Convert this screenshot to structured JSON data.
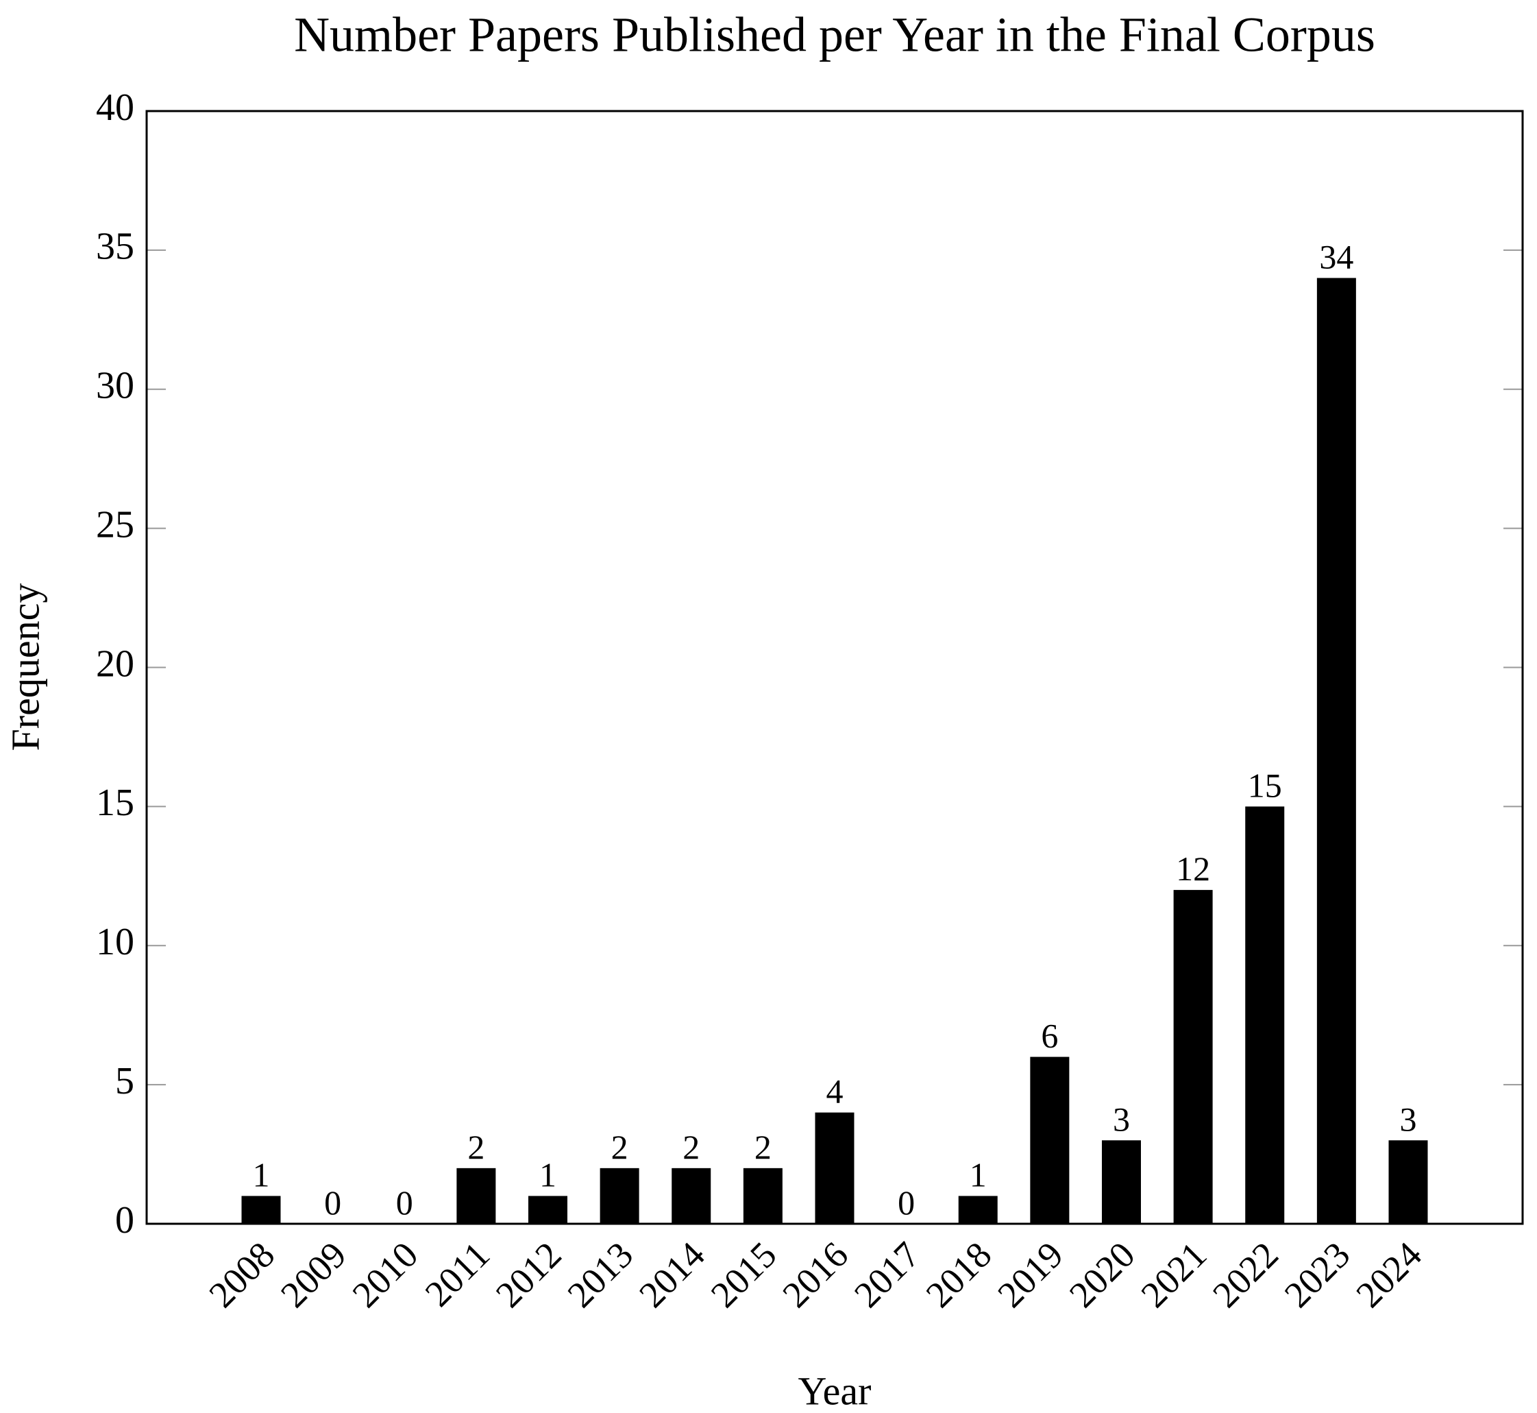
{
  "chart_data": {
    "type": "bar",
    "title": "Number Papers Published per Year in the Final Corpus",
    "x_label": "Year",
    "y_label": "Frequency",
    "categories": [
      "2008",
      "2009",
      "2010",
      "2011",
      "2012",
      "2013",
      "2014",
      "2015",
      "2016",
      "2017",
      "2018",
      "2019",
      "2020",
      "2021",
      "2022",
      "2023",
      "2024"
    ],
    "values": [
      1,
      0,
      0,
      2,
      1,
      2,
      2,
      2,
      4,
      0,
      1,
      6,
      3,
      12,
      15,
      34,
      3
    ],
    "color": "#000000",
    "ylim": [
      0,
      40
    ],
    "yticks": [
      0,
      5,
      10,
      15,
      20,
      25,
      30,
      35,
      40
    ],
    "grid": false
  }
}
